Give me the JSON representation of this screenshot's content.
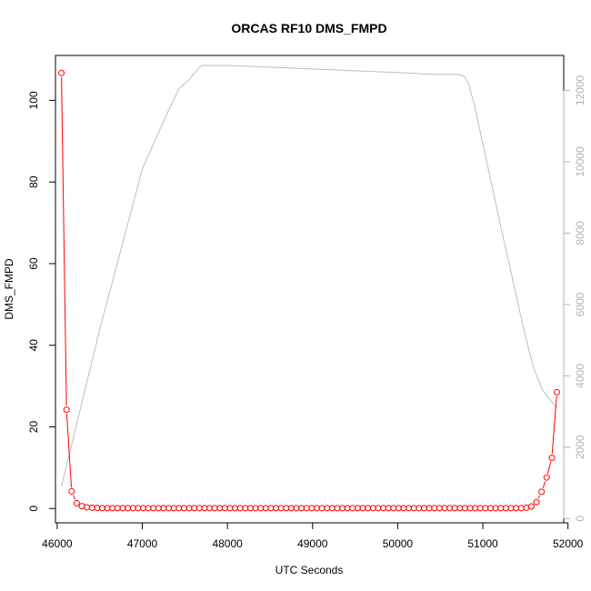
{
  "chart_data": {
    "type": "scatter",
    "title": "ORCAS RF10 DMS_FMPD",
    "xlabel": "UTC Seconds",
    "ylabel": "DMS_FMPD",
    "xlim": [
      45980,
      51950
    ],
    "ylim": [
      -3.5,
      111
    ],
    "y2lim": [
      -120,
      12980
    ],
    "x_ticks": [
      46000,
      47000,
      48000,
      49000,
      50000,
      51000,
      52000
    ],
    "y_ticks": [
      0,
      20,
      40,
      60,
      80,
      100
    ],
    "y2_ticks": [
      0,
      2000,
      4000,
      6000,
      8000,
      10000,
      12000
    ],
    "grid": false,
    "colors": {
      "primary_series": "#ff0000",
      "secondary_series": "#bebebe",
      "secondary_axis": "#b3b3b3"
    },
    "series": [
      {
        "x": [
          46050,
          46110,
          46170,
          46230,
          46290,
          46350,
          46410,
          46470,
          46530,
          46590,
          46650,
          46710,
          46770,
          46830,
          46890,
          46950,
          47010,
          47070,
          47130,
          47190,
          47250,
          47310,
          47370,
          47430,
          47490,
          47550,
          47610,
          47670,
          47730,
          47790,
          47850,
          47910,
          47970,
          48030,
          48090,
          48150,
          48210,
          48270,
          48330,
          48390,
          48450,
          48510,
          48570,
          48630,
          48690,
          48750,
          48810,
          48870,
          48930,
          48990,
          49050,
          49110,
          49170,
          49230,
          49290,
          49350,
          49410,
          49470,
          49530,
          49590,
          49650,
          49710,
          49770,
          49830,
          49890,
          49950,
          50010,
          50070,
          50130,
          50190,
          50250,
          50310,
          50370,
          50430,
          50490,
          50550,
          50610,
          50670,
          50730,
          50790,
          50850,
          50910,
          50970,
          51030,
          51090,
          51150,
          51210,
          51270,
          51330,
          51390,
          51450,
          51510,
          51570,
          51630,
          51690,
          51750,
          51810,
          51870
        ],
        "values": [
          106.7,
          24.2,
          4.2,
          1.3,
          0.6,
          0.3,
          0.2,
          0.15,
          0.1,
          0.1,
          0.1,
          0.1,
          0.1,
          0.1,
          0.1,
          0.1,
          0.1,
          0.1,
          0.1,
          0.1,
          0.1,
          0.1,
          0.1,
          0.1,
          0.1,
          0.1,
          0.1,
          0.1,
          0.1,
          0.1,
          0.1,
          0.1,
          0.1,
          0.1,
          0.1,
          0.1,
          0.1,
          0.1,
          0.1,
          0.1,
          0.1,
          0.1,
          0.1,
          0.1,
          0.1,
          0.1,
          0.1,
          0.1,
          0.1,
          0.1,
          0.1,
          0.1,
          0.1,
          0.1,
          0.1,
          0.1,
          0.1,
          0.1,
          0.1,
          0.1,
          0.1,
          0.1,
          0.1,
          0.1,
          0.1,
          0.1,
          0.1,
          0.1,
          0.1,
          0.1,
          0.1,
          0.1,
          0.1,
          0.1,
          0.1,
          0.1,
          0.1,
          0.1,
          0.1,
          0.1,
          0.1,
          0.1,
          0.1,
          0.1,
          0.1,
          0.1,
          0.1,
          0.1,
          0.1,
          0.1,
          0.1,
          0.2,
          0.5,
          1.6,
          4.1,
          7.6,
          12.4,
          28.5
        ]
      },
      {
        "axis": "right",
        "x": [
          46050,
          46500,
          47000,
          47300,
          47430,
          47550,
          47650,
          47700,
          48000,
          48500,
          49000,
          49500,
          50000,
          50400,
          50700,
          50780,
          50830,
          50900,
          51200,
          51500,
          51600,
          51700,
          51870
        ],
        "values": [
          900,
          5300,
          9800,
          11400,
          12050,
          12300,
          12600,
          12700,
          12700,
          12650,
          12600,
          12550,
          12500,
          12450,
          12450,
          12400,
          12200,
          11600,
          8300,
          5100,
          4200,
          3600,
          3100
        ]
      }
    ]
  }
}
